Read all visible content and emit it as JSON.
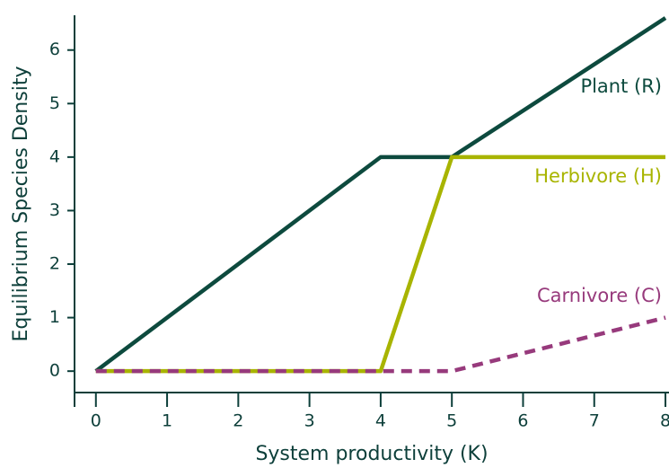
{
  "chart_data": {
    "type": "line",
    "x_label": "System productivity (K)",
    "y_label": "Equilibrium Species Density",
    "x": [
      0,
      4,
      5,
      8
    ],
    "series": [
      {
        "name": "Plant (R)",
        "color": "#0d4a3e",
        "style": "solid",
        "values": [
          0,
          4,
          4,
          6.6
        ]
      },
      {
        "name": "Herbivore (H)",
        "color": "#a8b400",
        "style": "solid",
        "values": [
          0,
          0,
          4,
          4
        ]
      },
      {
        "name": "Carnivore (C)",
        "color": "#973a7c",
        "style": "dashed",
        "values": [
          0,
          0,
          0,
          1
        ]
      }
    ],
    "xlim": [
      -0.3,
      8.05
    ],
    "ylim": [
      -0.4,
      6.65
    ],
    "xticks": [
      0,
      1,
      2,
      3,
      4,
      5,
      6,
      7,
      8
    ],
    "yticks": [
      0,
      1,
      2,
      3,
      4,
      5,
      6
    ],
    "grid": false
  }
}
